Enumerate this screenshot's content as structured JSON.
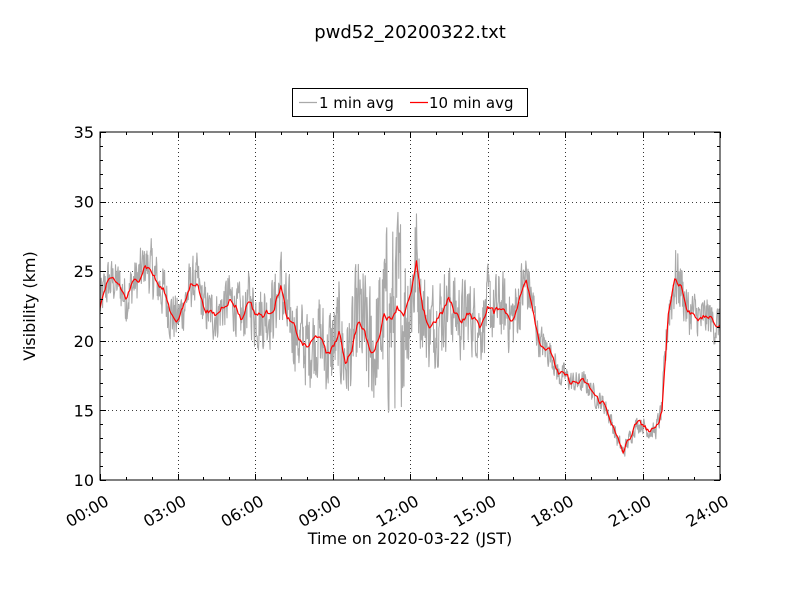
{
  "chart_data": {
    "type": "line",
    "title": "pwd52_20200322.txt",
    "xlabel": "Time on 2020-03-22 (JST)",
    "ylabel": "Visibility (km)",
    "x_units": "hours since 2020-03-22 00:00 JST",
    "xlim": [
      0,
      24
    ],
    "ylim": [
      10,
      35
    ],
    "xticks": [
      0,
      3,
      6,
      9,
      12,
      15,
      18,
      21,
      24
    ],
    "xtick_labels": [
      "00:00",
      "03:00",
      "06:00",
      "09:00",
      "12:00",
      "15:00",
      "18:00",
      "21:00",
      "24:00"
    ],
    "yticks": [
      10,
      15,
      20,
      25,
      30,
      35
    ],
    "ytick_labels": [
      "10",
      "15",
      "20",
      "25",
      "30",
      "35"
    ],
    "grid": true,
    "legend_position": "top-center, above plot",
    "series": [
      {
        "name": "1 min avg",
        "color": "#a9a9a9",
        "style": "noisy",
        "x": [
          0,
          0.25,
          0.5,
          0.75,
          1.0,
          1.25,
          1.5,
          1.75,
          2.0,
          2.25,
          2.5,
          2.75,
          3.0,
          3.25,
          3.5,
          3.75,
          4.0,
          4.25,
          4.5,
          4.75,
          5.0,
          5.25,
          5.5,
          5.75,
          6.0,
          6.25,
          6.5,
          6.75,
          7.0,
          7.25,
          7.5,
          7.75,
          8.0,
          8.25,
          8.5,
          8.75,
          9.0,
          9.25,
          9.5,
          9.75,
          10.0,
          10.25,
          10.5,
          10.75,
          11.0,
          11.25,
          11.5,
          11.75,
          12.0,
          12.25,
          12.5,
          12.75,
          13.0,
          13.25,
          13.5,
          13.75,
          14.0,
          14.25,
          14.5,
          14.75,
          15.0,
          15.25,
          15.5,
          15.75,
          16.0,
          16.25,
          16.5,
          16.75,
          17.0,
          17.25,
          17.5,
          17.75,
          18.0,
          18.25,
          18.5,
          18.75,
          19.0,
          19.25,
          19.5,
          19.75,
          20.0,
          20.25,
          20.5,
          20.75,
          21.0,
          21.25,
          21.5,
          21.75,
          22.0,
          22.25,
          22.5,
          22.75,
          23.0,
          23.25,
          23.5,
          23.75,
          24.0
        ],
        "y": [
          22.5,
          24.0,
          24.3,
          24.0,
          23.0,
          24.0,
          24.5,
          25.5,
          25.0,
          24.0,
          23.5,
          22.0,
          21.5,
          22.5,
          24.0,
          24.3,
          22.5,
          22.0,
          21.8,
          22.5,
          23.0,
          22.5,
          21.5,
          23.0,
          22.0,
          21.8,
          22.0,
          22.5,
          24.0,
          21.5,
          21.0,
          20.0,
          19.5,
          20.0,
          20.5,
          19.0,
          19.5,
          20.5,
          18.5,
          19.5,
          21.5,
          20.5,
          19.0,
          20.0,
          22.0,
          21.5,
          22.5,
          22.0,
          23.0,
          25.5,
          22.0,
          21.0,
          21.5,
          22.0,
          23.0,
          22.0,
          21.5,
          22.0,
          21.5,
          21.0,
          22.5,
          22.0,
          22.5,
          22.0,
          21.5,
          23.0,
          24.5,
          22.5,
          20.0,
          19.5,
          19.0,
          17.5,
          17.5,
          17.0,
          17.0,
          17.0,
          16.5,
          15.8,
          15.5,
          14.5,
          13.0,
          12.0,
          13.0,
          14.0,
          14.0,
          13.5,
          13.5,
          15.0,
          22.0,
          24.5,
          24.0,
          22.0,
          22.0,
          21.5,
          21.8,
          21.3,
          21.0
        ],
        "noise_amplitude_km": [
          1.8,
          1.8,
          1.6,
          1.6,
          1.8,
          1.8,
          1.8,
          1.8,
          2.0,
          2.0,
          2.0,
          2.0,
          1.8,
          1.8,
          1.8,
          1.8,
          1.8,
          1.8,
          1.8,
          1.8,
          2.0,
          2.0,
          2.0,
          2.0,
          2.5,
          2.5,
          2.5,
          2.5,
          2.8,
          2.8,
          2.8,
          2.8,
          3.0,
          3.0,
          3.0,
          3.0,
          3.5,
          3.5,
          3.5,
          3.5,
          4.5,
          4.5,
          4.5,
          4.5,
          6.0,
          6.5,
          7.0,
          6.0,
          5.0,
          4.5,
          3.5,
          3.0,
          3.0,
          3.0,
          2.8,
          2.8,
          2.8,
          2.8,
          2.5,
          2.5,
          2.5,
          2.5,
          2.5,
          2.5,
          2.5,
          2.5,
          2.5,
          2.0,
          1.2,
          1.2,
          1.0,
          1.0,
          0.8,
          0.8,
          0.8,
          0.8,
          0.7,
          0.7,
          0.7,
          0.7,
          0.6,
          0.6,
          0.6,
          0.6,
          0.6,
          0.6,
          0.6,
          1.0,
          2.0,
          2.5,
          2.0,
          1.8,
          1.5,
          1.5,
          1.5,
          1.5,
          1.5
        ]
      },
      {
        "name": "10 min avg",
        "color": "#ff0000",
        "style": "smooth",
        "x": [
          0,
          0.25,
          0.5,
          0.75,
          1.0,
          1.25,
          1.5,
          1.75,
          2.0,
          2.25,
          2.5,
          2.75,
          3.0,
          3.25,
          3.5,
          3.75,
          4.0,
          4.25,
          4.5,
          4.75,
          5.0,
          5.25,
          5.5,
          5.75,
          6.0,
          6.25,
          6.5,
          6.75,
          7.0,
          7.25,
          7.5,
          7.75,
          8.0,
          8.25,
          8.5,
          8.75,
          9.0,
          9.25,
          9.5,
          9.75,
          10.0,
          10.25,
          10.5,
          10.75,
          11.0,
          11.25,
          11.5,
          11.75,
          12.0,
          12.25,
          12.5,
          12.75,
          13.0,
          13.25,
          13.5,
          13.75,
          14.0,
          14.25,
          14.5,
          14.75,
          15.0,
          15.25,
          15.5,
          15.75,
          16.0,
          16.25,
          16.5,
          16.75,
          17.0,
          17.25,
          17.5,
          17.75,
          18.0,
          18.25,
          18.5,
          18.75,
          19.0,
          19.25,
          19.5,
          19.75,
          20.0,
          20.25,
          20.5,
          20.75,
          21.0,
          21.25,
          21.5,
          21.75,
          22.0,
          22.25,
          22.5,
          22.75,
          23.0,
          23.25,
          23.5,
          23.75,
          24.0
        ],
        "y": [
          22.5,
          24.0,
          24.3,
          24.0,
          23.0,
          24.0,
          24.5,
          25.5,
          25.0,
          24.0,
          23.5,
          22.0,
          21.5,
          22.5,
          24.0,
          24.3,
          22.5,
          22.0,
          21.8,
          22.5,
          23.0,
          22.5,
          21.5,
          23.0,
          22.0,
          21.8,
          22.0,
          22.5,
          24.0,
          21.5,
          21.0,
          20.0,
          19.5,
          20.0,
          20.5,
          19.0,
          19.5,
          20.5,
          18.5,
          19.5,
          21.5,
          20.5,
          19.0,
          20.0,
          22.0,
          21.5,
          22.5,
          22.0,
          23.0,
          25.5,
          22.0,
          21.0,
          21.5,
          22.0,
          23.0,
          22.0,
          21.5,
          22.0,
          21.5,
          21.0,
          22.5,
          22.0,
          22.5,
          22.0,
          21.5,
          23.0,
          24.5,
          22.5,
          20.0,
          19.5,
          19.0,
          17.5,
          17.5,
          17.0,
          17.0,
          17.0,
          16.5,
          15.8,
          15.5,
          14.5,
          13.0,
          12.0,
          13.0,
          14.0,
          14.0,
          13.5,
          13.5,
          15.0,
          22.0,
          24.5,
          24.0,
          22.0,
          22.0,
          21.5,
          21.8,
          21.3,
          21.0
        ]
      }
    ]
  }
}
